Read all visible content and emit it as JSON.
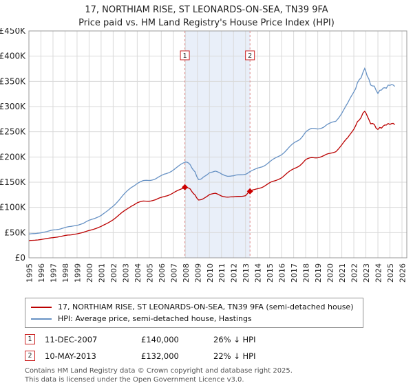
{
  "title": "17, NORTHIAM RISE, ST LEONARDS-ON-SEA, TN39 9FA",
  "subtitle": "Price paid vs. HM Land Registry's House Price Index (HPI)",
  "chart_data": {
    "type": "line",
    "title": "17, NORTHIAM RISE, ST LEONARDS-ON-SEA, TN39 9FA — Price paid vs. HPI",
    "xlabel": "",
    "ylabel": "",
    "grid": true,
    "x_range": [
      1995,
      2026.4
    ],
    "ylim": [
      0,
      450000
    ],
    "yticks": [
      {
        "value": 0,
        "label": "£0"
      },
      {
        "value": 50000,
        "label": "£50K"
      },
      {
        "value": 100000,
        "label": "£100K"
      },
      {
        "value": 150000,
        "label": "£150K"
      },
      {
        "value": 200000,
        "label": "£200K"
      },
      {
        "value": 250000,
        "label": "£250K"
      },
      {
        "value": 300000,
        "label": "£300K"
      },
      {
        "value": 350000,
        "label": "£350K"
      },
      {
        "value": 400000,
        "label": "£400K"
      },
      {
        "value": 450000,
        "label": "£450K"
      }
    ],
    "year_labels": [
      1995,
      1996,
      1997,
      1998,
      1999,
      2000,
      2001,
      2002,
      2003,
      2004,
      2005,
      2006,
      2007,
      2008,
      2009,
      2010,
      2011,
      2012,
      2013,
      2014,
      2015,
      2016,
      2017,
      2018,
      2019,
      2020,
      2021,
      2022,
      2023,
      2024,
      2025,
      2026
    ],
    "shade_region": {
      "from": 2007.96,
      "to": 2013.37,
      "color": "#e9eff9"
    },
    "x": [
      1995,
      1995.5,
      1996,
      1996.5,
      1997,
      1997.5,
      1998,
      1998.5,
      1999,
      1999.5,
      2000,
      2000.5,
      2001,
      2001.5,
      2002,
      2002.5,
      2003,
      2003.5,
      2004,
      2004.5,
      2005,
      2005.5,
      2006,
      2006.5,
      2007,
      2007.5,
      2008,
      2008.4,
      2008.8,
      2009.1,
      2009.5,
      2010,
      2010.5,
      2011,
      2011.5,
      2012,
      2012.5,
      2013,
      2013.37,
      2014,
      2014.5,
      2015,
      2015.5,
      2016,
      2016.5,
      2017,
      2017.5,
      2018,
      2018.5,
      2019,
      2019.5,
      2020,
      2020.5,
      2021,
      2021.5,
      2022,
      2022.3,
      2022.6,
      2022.9,
      2023.1,
      2023.4,
      2023.7,
      2024,
      2024.3,
      2024.7,
      2025,
      2025.4
    ],
    "series": [
      {
        "id": "property-price",
        "name": "17, NORTHIAM RISE, ST LEONARDS-ON-SEA, TN39 9FA (semi-detached house)",
        "color": "#bb0000",
        "values": [
          34000,
          35000,
          36500,
          38000,
          40000,
          42000,
          44000,
          45500,
          48000,
          50000,
          54000,
          58000,
          62000,
          68000,
          76000,
          85000,
          94000,
          103000,
          109000,
          112000,
          113000,
          115000,
          119000,
          124000,
          129000,
          134000,
          140000,
          136000,
          125000,
          114000,
          118000,
          126000,
          127000,
          123000,
          121000,
          120000,
          122000,
          124000,
          132000,
          137000,
          142000,
          148000,
          153000,
          160000,
          168000,
          176000,
          184000,
          194000,
          198000,
          200000,
          202000,
          206000,
          212000,
          224000,
          237000,
          257000,
          268000,
          280000,
          290000,
          280000,
          268000,
          263000,
          255000,
          258000,
          263000,
          266000,
          264000
        ]
      },
      {
        "id": "hpi-average",
        "name": "HPI: Average price, semi-detached house, Hastings",
        "color": "#6691c4",
        "values": [
          47000,
          48000,
          50000,
          52000,
          55000,
          57000,
          60000,
          62000,
          65000,
          68000,
          74000,
          79000,
          84000,
          92000,
          103000,
          115000,
          128000,
          140000,
          148000,
          152000,
          154000,
          157000,
          162000,
          168000,
          175000,
          182000,
          190000,
          185000,
          170000,
          155000,
          160000,
          170000,
          171000,
          166000,
          163000,
          162000,
          164000,
          167000,
          170000,
          177000,
          183000,
          190000,
          197000,
          206000,
          216000,
          226000,
          236000,
          250000,
          255000,
          257000,
          260000,
          265000,
          272000,
          288000,
          305000,
          330000,
          345000,
          360000,
          373000,
          360000,
          345000,
          338000,
          328000,
          332000,
          338000,
          342000,
          340000
        ]
      }
    ],
    "markers": [
      {
        "label": "1",
        "x": 2007.96,
        "value": 140000
      },
      {
        "label": "2",
        "x": 2013.37,
        "value": 132000
      }
    ],
    "legend_position": "bottom"
  },
  "colors": {
    "property_line": "#bb0000",
    "hpi_line": "#6691c4",
    "sale_dashed_line": "#dd8888",
    "marker": "#cc0000",
    "grid": "#d9d9d9",
    "shade": "#e9eff9"
  },
  "legend": {
    "items": [
      {
        "label": "17, NORTHIAM RISE, ST LEONARDS-ON-SEA, TN39 9FA (semi-detached house)",
        "color": "#bb0000"
      },
      {
        "label": "HPI: Average price, semi-detached house, Hastings",
        "color": "#6691c4"
      }
    ]
  },
  "transactions": [
    {
      "num": "1",
      "date": "11-DEC-2007",
      "price": "£140,000",
      "vs_hpi": "26% ↓ HPI"
    },
    {
      "num": "2",
      "date": "10-MAY-2013",
      "price": "£132,000",
      "vs_hpi": "22% ↓ HPI"
    }
  ],
  "footer": {
    "line1": "Contains HM Land Registry data © Crown copyright and database right 2025.",
    "line2": "This data is licensed under the Open Government Licence v3.0."
  }
}
